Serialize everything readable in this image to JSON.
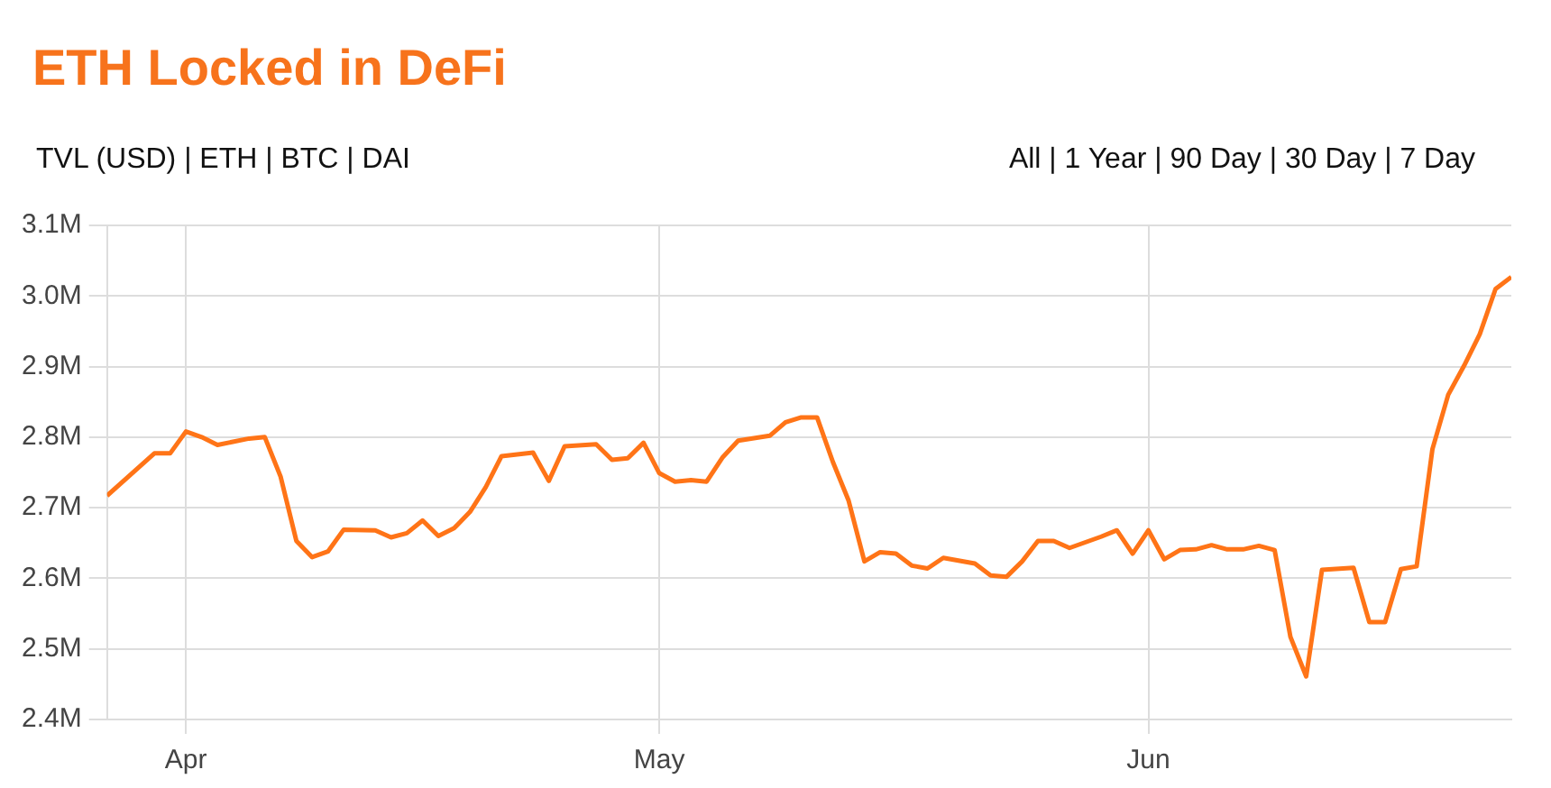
{
  "chart_data": {
    "type": "line",
    "title": "ETH Locked in DeFi",
    "annotations": [
      "TVL (USD) | ETH | BTC | DAI",
      "All | 1 Year | 90 Day | 30 Day | 7 Day"
    ],
    "x": [
      "--03-27",
      "--03-30",
      "--03-31",
      "--04-01",
      "--04-02",
      "--04-03",
      "--04-05",
      "--04-06",
      "--04-07",
      "--04-08",
      "--04-09",
      "--04-10",
      "--04-11",
      "--04-13",
      "--04-14",
      "--04-15",
      "--04-16",
      "--04-17",
      "--04-18",
      "--04-19",
      "--04-20",
      "--04-21",
      "--04-23",
      "--04-24",
      "--04-25",
      "--04-27",
      "--04-28",
      "--04-29",
      "--04-30",
      "--05-01",
      "--05-02",
      "--05-03",
      "--05-04",
      "--05-05",
      "--05-06",
      "--05-08",
      "--05-09",
      "--05-10",
      "--05-11",
      "--05-12",
      "--05-13",
      "--05-14",
      "--05-15",
      "--05-16",
      "--05-17",
      "--05-18",
      "--05-19",
      "--05-21",
      "--05-22",
      "--05-23",
      "--05-24",
      "--05-25",
      "--05-26",
      "--05-27",
      "--05-29",
      "--05-30",
      "--05-31",
      "--06-01",
      "--06-02",
      "--06-03",
      "--06-04",
      "--06-05",
      "--06-06",
      "--06-07",
      "--06-08",
      "--06-09",
      "--06-10",
      "--06-11",
      "--06-12",
      "--06-14",
      "--06-15",
      "--06-16",
      "--06-17",
      "--06-18",
      "--06-19",
      "--06-20",
      "--06-21",
      "--06-22",
      "--06-23",
      "--06-24"
    ],
    "series": [
      {
        "color": "#ff7417",
        "values": [
          2.717,
          2.777,
          2.777,
          2.808,
          2.8,
          2.789,
          2.798,
          2.8,
          2.744,
          2.653,
          2.63,
          2.638,
          2.669,
          2.668,
          2.658,
          2.664,
          2.682,
          2.66,
          2.671,
          2.694,
          2.729,
          2.773,
          2.778,
          2.738,
          2.787,
          2.79,
          2.768,
          2.77,
          2.792,
          2.749,
          2.737,
          2.739,
          2.737,
          2.771,
          2.795,
          2.802,
          2.821,
          2.828,
          2.828,
          2.765,
          2.71,
          2.624,
          2.637,
          2.635,
          2.618,
          2.614,
          2.629,
          2.621,
          2.604,
          2.602,
          2.624,
          2.653,
          2.653,
          2.643,
          2.659,
          2.668,
          2.635,
          2.668,
          2.627,
          2.64,
          2.641,
          2.647,
          2.641,
          2.641,
          2.646,
          2.64,
          2.517,
          2.461,
          2.612,
          2.615,
          2.538,
          2.538,
          2.613,
          2.617,
          2.783,
          2.86,
          2.901,
          2.946,
          3.01,
          3.027
        ]
      }
    ],
    "xlim": [
      "--03-27",
      "--06-24"
    ],
    "xticks": [
      {
        "value": "--04-01",
        "label": "Apr"
      },
      {
        "value": "--05-01",
        "label": "May"
      },
      {
        "value": "--06-01",
        "label": "Jun"
      }
    ],
    "ylim": [
      2.4,
      3.1
    ],
    "yticks": [
      {
        "value": 2.4,
        "label": "2.4M"
      },
      {
        "value": 2.5,
        "label": "2.5M"
      },
      {
        "value": 2.6,
        "label": "2.6M"
      },
      {
        "value": 2.7,
        "label": "2.7M"
      },
      {
        "value": 2.8,
        "label": "2.8M"
      },
      {
        "value": 2.9,
        "label": "2.9M"
      },
      {
        "value": 3.0,
        "label": "3.0M"
      },
      {
        "value": 3.1,
        "label": "3.1M"
      }
    ],
    "grid": true,
    "legend": false,
    "marker": "none",
    "line_style": "solid"
  }
}
